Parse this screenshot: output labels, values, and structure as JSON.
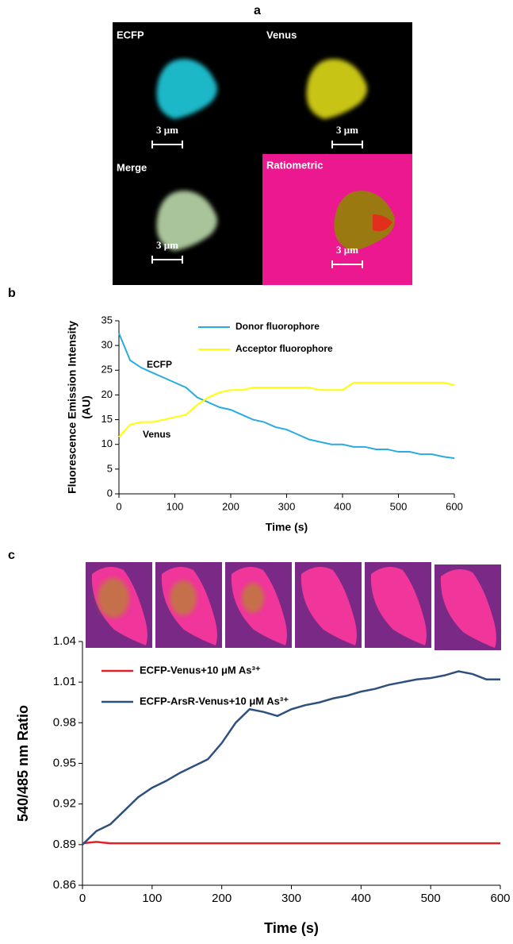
{
  "panels": {
    "labels": [
      "a",
      "b",
      "c"
    ],
    "image_titles": [
      "ECFP",
      "Venus",
      "Merge",
      "Ratiometric"
    ],
    "scale_bar": "3 μm"
  },
  "chart_data": [
    {
      "type": "line",
      "xlabel": "Time (s)",
      "ylabel": [
        "Fluorescence Emission Intensity",
        "(AU)"
      ],
      "x": [
        0,
        20,
        40,
        60,
        80,
        100,
        120,
        140,
        160,
        180,
        200,
        220,
        240,
        260,
        280,
        300,
        320,
        340,
        360,
        380,
        400,
        420,
        440,
        460,
        480,
        500,
        520,
        540,
        560,
        580,
        600
      ],
      "series": [
        {
          "name": "Donor fluorophore",
          "color": "#29abe2",
          "values": [
            32.5,
            27,
            25.5,
            24.5,
            23.5,
            22.5,
            21.5,
            19.5,
            18.5,
            17.5,
            17,
            16,
            15,
            14.5,
            13.5,
            13,
            12,
            11,
            10.5,
            10,
            10,
            9.5,
            9.5,
            9,
            9,
            8.5,
            8.5,
            8,
            8,
            7.5,
            7.2
          ]
        },
        {
          "name": "Acceptor fluorophore",
          "color": "#ffff00",
          "values": [
            11.5,
            14,
            14.5,
            14.5,
            15,
            15.5,
            16,
            18,
            19.5,
            20.5,
            21,
            21,
            21.5,
            21.5,
            21.5,
            21.5,
            21.5,
            21.5,
            21,
            21,
            21,
            22.5,
            22.5,
            22.5,
            22.5,
            22.5,
            22.5,
            22.5,
            22.5,
            22.5,
            22
          ]
        }
      ],
      "annotations": [
        "ECFP",
        "Venus"
      ],
      "xlim": [
        0,
        600
      ],
      "xticks": [
        0,
        100,
        200,
        300,
        400,
        500,
        600
      ],
      "ylim": [
        0,
        35
      ],
      "yticks": [
        0,
        5,
        10,
        15,
        20,
        25,
        30,
        35
      ],
      "grid": false,
      "legend": "top"
    },
    {
      "type": "line",
      "xlabel": "Time (s)",
      "ylabel": [
        "540/485 nm Ratio"
      ],
      "x": [
        0,
        20,
        40,
        60,
        80,
        100,
        120,
        140,
        160,
        180,
        200,
        220,
        240,
        260,
        280,
        300,
        320,
        340,
        360,
        380,
        400,
        420,
        440,
        460,
        480,
        500,
        520,
        540,
        560,
        580,
        600
      ],
      "series": [
        {
          "name": "ECFP-Venus+10 μM As³⁺",
          "color": "#e3202a",
          "values": [
            0.891,
            0.892,
            0.891,
            0.891,
            0.891,
            0.891,
            0.891,
            0.891,
            0.891,
            0.891,
            0.891,
            0.891,
            0.891,
            0.891,
            0.891,
            0.891,
            0.891,
            0.891,
            0.891,
            0.891,
            0.891,
            0.891,
            0.891,
            0.891,
            0.891,
            0.891,
            0.891,
            0.891,
            0.891,
            0.891,
            0.891
          ]
        },
        {
          "name": "ECFP-ArsR-Venus+10 μM As³⁺",
          "color": "#2f4f7d",
          "values": [
            0.89,
            0.9,
            0.905,
            0.915,
            0.925,
            0.932,
            0.937,
            0.943,
            0.948,
            0.953,
            0.965,
            0.98,
            0.99,
            0.988,
            0.985,
            0.99,
            0.993,
            0.995,
            0.998,
            1.0,
            1.003,
            1.005,
            1.008,
            1.01,
            1.012,
            1.013,
            1.015,
            1.018,
            1.016,
            1.012,
            1.012
          ]
        }
      ],
      "xlim": [
        0,
        600
      ],
      "xticks": [
        0,
        100,
        200,
        300,
        400,
        500,
        600
      ],
      "ylim": [
        0.86,
        1.04
      ],
      "yticks": [
        0.86,
        0.89,
        0.92,
        0.95,
        0.98,
        1.01,
        1.04
      ],
      "grid": false,
      "legend": "top"
    }
  ]
}
